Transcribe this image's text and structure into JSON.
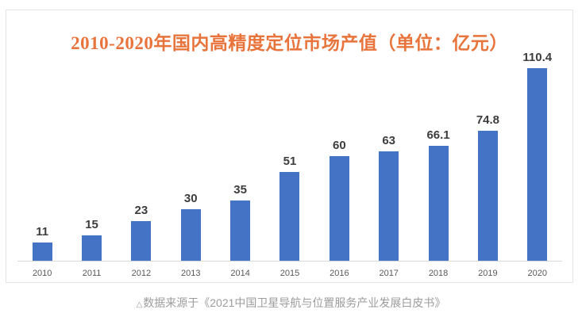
{
  "chart_data": {
    "type": "bar",
    "title": "2010-2020年国内高精度定位市场产值（单位：亿元）",
    "categories": [
      "2010",
      "2011",
      "2012",
      "2013",
      "2014",
      "2015",
      "2016",
      "2017",
      "2018",
      "2019",
      "2020"
    ],
    "values": [
      11,
      15,
      23,
      30,
      35,
      51,
      60,
      63,
      66.1,
      74.8,
      110.4
    ],
    "value_labels": [
      "11",
      "15",
      "23",
      "30",
      "35",
      "51",
      "60",
      "63",
      "66.1",
      "74.8",
      "110.4"
    ],
    "xlabel": "",
    "ylabel": "",
    "ylim": [
      0,
      110.4
    ],
    "grid": false,
    "legend_position": "none",
    "bar_color": "#4472c4",
    "title_color": "#e8743c"
  },
  "caption": {
    "marker": "△",
    "text": "数据来源于《2021中国卫星导航与位置服务产业发展白皮书》"
  }
}
